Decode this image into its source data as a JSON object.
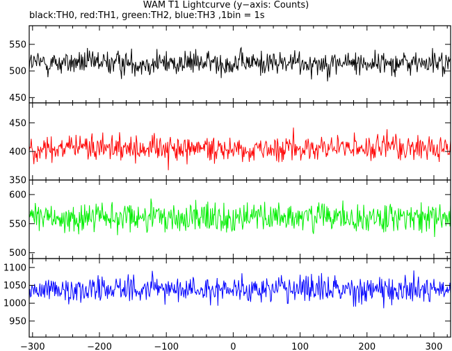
{
  "chart_data": {
    "type": "line",
    "title": "WAM T1 Lightcurve (y−axis: Counts)",
    "subtitle": "black:TH0, red:TH1, green:TH2, blue:TH3 ,1bin = 1s",
    "x": {
      "range": [
        -305,
        325
      ],
      "ticks": [
        -300,
        -200,
        -100,
        0,
        100,
        200,
        300
      ],
      "tick_labels": [
        "−300",
        "−200",
        "−100",
        "0",
        "100",
        "200",
        "300"
      ],
      "bin_seconds": 1
    },
    "panels": [
      {
        "name": "TH0",
        "color": "#000000",
        "ylim": [
          440,
          585
        ],
        "yticks": [
          450,
          500,
          550
        ],
        "mean": 515,
        "spread": 20,
        "value_range": [
          440,
          585
        ]
      },
      {
        "name": "TH1",
        "color": "#ff0000",
        "ylim": [
          350,
          485
        ],
        "yticks": [
          350,
          400,
          450
        ],
        "mean": 405,
        "spread": 20,
        "value_range": [
          350,
          485
        ]
      },
      {
        "name": "TH2",
        "color": "#00ee00",
        "ylim": [
          490,
          625
        ],
        "yticks": [
          500,
          550,
          600
        ],
        "mean": 560,
        "spread": 23,
        "value_range": [
          490,
          625
        ]
      },
      {
        "name": "TH3",
        "color": "#0000ff",
        "ylim": [
          905,
          1125
        ],
        "yticks": [
          950,
          1000,
          1050,
          1100
        ],
        "mean": 1040,
        "spread": 32,
        "value_range": [
          905,
          1125
        ]
      }
    ]
  }
}
